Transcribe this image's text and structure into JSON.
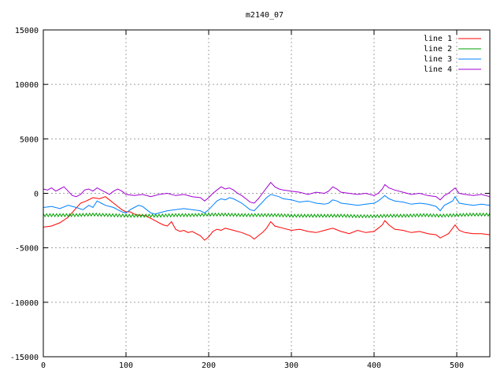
{
  "chart_data": {
    "type": "line",
    "title": "m2140_07",
    "xlabel": "",
    "ylabel": "",
    "xlim": [
      0,
      540
    ],
    "ylim": [
      -15000,
      15000
    ],
    "xticks": [
      0,
      100,
      200,
      300,
      400,
      500
    ],
    "yticks": [
      -15000,
      -10000,
      -5000,
      0,
      5000,
      10000,
      15000
    ],
    "grid": true,
    "legend_position": "top-right",
    "series": [
      {
        "name": "line 1",
        "color": "#ff0000",
        "points": [
          [
            0,
            -3100
          ],
          [
            10,
            -3000
          ],
          [
            20,
            -2700
          ],
          [
            30,
            -2200
          ],
          [
            38,
            -1500
          ],
          [
            45,
            -900
          ],
          [
            52,
            -700
          ],
          [
            60,
            -400
          ],
          [
            68,
            -500
          ],
          [
            75,
            -300
          ],
          [
            80,
            -600
          ],
          [
            85,
            -900
          ],
          [
            90,
            -1200
          ],
          [
            95,
            -1500
          ],
          [
            100,
            -1700
          ],
          [
            105,
            -1700
          ],
          [
            110,
            -1900
          ],
          [
            115,
            -2000
          ],
          [
            120,
            -2000
          ],
          [
            125,
            -2100
          ],
          [
            130,
            -2300
          ],
          [
            135,
            -2500
          ],
          [
            140,
            -2700
          ],
          [
            145,
            -2900
          ],
          [
            150,
            -3000
          ],
          [
            155,
            -2600
          ],
          [
            160,
            -3300
          ],
          [
            165,
            -3500
          ],
          [
            170,
            -3400
          ],
          [
            175,
            -3600
          ],
          [
            180,
            -3500
          ],
          [
            185,
            -3700
          ],
          [
            190,
            -3900
          ],
          [
            195,
            -4300
          ],
          [
            200,
            -4000
          ],
          [
            205,
            -3500
          ],
          [
            210,
            -3300
          ],
          [
            215,
            -3400
          ],
          [
            220,
            -3200
          ],
          [
            230,
            -3400
          ],
          [
            240,
            -3600
          ],
          [
            250,
            -3900
          ],
          [
            255,
            -4200
          ],
          [
            260,
            -3900
          ],
          [
            265,
            -3600
          ],
          [
            270,
            -3200
          ],
          [
            275,
            -2600
          ],
          [
            280,
            -3000
          ],
          [
            290,
            -3200
          ],
          [
            300,
            -3400
          ],
          [
            310,
            -3300
          ],
          [
            320,
            -3500
          ],
          [
            330,
            -3600
          ],
          [
            340,
            -3400
          ],
          [
            350,
            -3200
          ],
          [
            360,
            -3500
          ],
          [
            370,
            -3700
          ],
          [
            380,
            -3400
          ],
          [
            390,
            -3600
          ],
          [
            400,
            -3500
          ],
          [
            405,
            -3200
          ],
          [
            410,
            -2900
          ],
          [
            413,
            -2500
          ],
          [
            418,
            -2900
          ],
          [
            425,
            -3300
          ],
          [
            435,
            -3400
          ],
          [
            445,
            -3600
          ],
          [
            455,
            -3500
          ],
          [
            465,
            -3700
          ],
          [
            475,
            -3800
          ],
          [
            480,
            -4100
          ],
          [
            485,
            -3900
          ],
          [
            490,
            -3700
          ],
          [
            495,
            -3200
          ],
          [
            498,
            -2900
          ],
          [
            503,
            -3400
          ],
          [
            510,
            -3600
          ],
          [
            520,
            -3700
          ],
          [
            530,
            -3700
          ],
          [
            540,
            -3800
          ]
        ]
      },
      {
        "name": "line 2",
        "color": "#00a000",
        "points": [
          [
            0,
            -2000
          ],
          [
            20,
            -2000
          ],
          [
            40,
            -2000
          ],
          [
            60,
            -1950
          ],
          [
            80,
            -2000
          ],
          [
            100,
            -2050
          ],
          [
            120,
            -2050
          ],
          [
            140,
            -2050
          ],
          [
            160,
            -2000
          ],
          [
            180,
            -2000
          ],
          [
            200,
            -1950
          ],
          [
            220,
            -1950
          ],
          [
            240,
            -2000
          ],
          [
            260,
            -2000
          ],
          [
            280,
            -2000
          ],
          [
            300,
            -2050
          ],
          [
            320,
            -2050
          ],
          [
            340,
            -2050
          ],
          [
            360,
            -2050
          ],
          [
            380,
            -2100
          ],
          [
            400,
            -2100
          ],
          [
            420,
            -2050
          ],
          [
            440,
            -2050
          ],
          [
            460,
            -2000
          ],
          [
            480,
            -2050
          ],
          [
            500,
            -2000
          ],
          [
            520,
            -1950
          ],
          [
            540,
            -1950
          ]
        ]
      },
      {
        "name": "line 3",
        "color": "#0080ff",
        "points": [
          [
            0,
            -1300
          ],
          [
            10,
            -1200
          ],
          [
            20,
            -1400
          ],
          [
            30,
            -1100
          ],
          [
            40,
            -1300
          ],
          [
            48,
            -1500
          ],
          [
            55,
            -1100
          ],
          [
            60,
            -1300
          ],
          [
            65,
            -700
          ],
          [
            70,
            -900
          ],
          [
            75,
            -1100
          ],
          [
            80,
            -1200
          ],
          [
            85,
            -1300
          ],
          [
            90,
            -1500
          ],
          [
            95,
            -1700
          ],
          [
            100,
            -1800
          ],
          [
            105,
            -1500
          ],
          [
            110,
            -1300
          ],
          [
            115,
            -1100
          ],
          [
            120,
            -1200
          ],
          [
            125,
            -1500
          ],
          [
            130,
            -1800
          ],
          [
            135,
            -1900
          ],
          [
            140,
            -1800
          ],
          [
            150,
            -1600
          ],
          [
            160,
            -1500
          ],
          [
            170,
            -1400
          ],
          [
            180,
            -1500
          ],
          [
            190,
            -1600
          ],
          [
            195,
            -1800
          ],
          [
            200,
            -1500
          ],
          [
            205,
            -1100
          ],
          [
            210,
            -700
          ],
          [
            215,
            -500
          ],
          [
            220,
            -600
          ],
          [
            225,
            -400
          ],
          [
            230,
            -500
          ],
          [
            235,
            -700
          ],
          [
            240,
            -900
          ],
          [
            245,
            -1200
          ],
          [
            250,
            -1500
          ],
          [
            255,
            -1600
          ],
          [
            260,
            -1200
          ],
          [
            265,
            -800
          ],
          [
            270,
            -400
          ],
          [
            275,
            -100
          ],
          [
            280,
            -200
          ],
          [
            285,
            -300
          ],
          [
            290,
            -500
          ],
          [
            300,
            -600
          ],
          [
            310,
            -800
          ],
          [
            320,
            -700
          ],
          [
            330,
            -900
          ],
          [
            340,
            -1000
          ],
          [
            345,
            -900
          ],
          [
            350,
            -600
          ],
          [
            355,
            -700
          ],
          [
            360,
            -900
          ],
          [
            370,
            -1000
          ],
          [
            380,
            -1100
          ],
          [
            390,
            -1000
          ],
          [
            400,
            -900
          ],
          [
            405,
            -700
          ],
          [
            410,
            -400
          ],
          [
            413,
            -200
          ],
          [
            418,
            -500
          ],
          [
            425,
            -700
          ],
          [
            435,
            -800
          ],
          [
            445,
            -1000
          ],
          [
            455,
            -900
          ],
          [
            465,
            -1000
          ],
          [
            475,
            -1200
          ],
          [
            480,
            -1600
          ],
          [
            485,
            -1100
          ],
          [
            490,
            -900
          ],
          [
            495,
            -700
          ],
          [
            498,
            -300
          ],
          [
            503,
            -900
          ],
          [
            510,
            -1000
          ],
          [
            520,
            -1100
          ],
          [
            530,
            -1000
          ],
          [
            540,
            -1100
          ]
        ]
      },
      {
        "name": "line 4",
        "color": "#a000d0",
        "points": [
          [
            0,
            400
          ],
          [
            5,
            300
          ],
          [
            10,
            500
          ],
          [
            15,
            200
          ],
          [
            20,
            400
          ],
          [
            25,
            600
          ],
          [
            30,
            200
          ],
          [
            35,
            -200
          ],
          [
            40,
            -300
          ],
          [
            45,
            -100
          ],
          [
            50,
            300
          ],
          [
            55,
            400
          ],
          [
            60,
            200
          ],
          [
            65,
            500
          ],
          [
            70,
            300
          ],
          [
            75,
            100
          ],
          [
            80,
            -100
          ],
          [
            85,
            200
          ],
          [
            90,
            400
          ],
          [
            95,
            200
          ],
          [
            100,
            -100
          ],
          [
            110,
            -200
          ],
          [
            120,
            -100
          ],
          [
            130,
            -300
          ],
          [
            140,
            -100
          ],
          [
            150,
            0
          ],
          [
            160,
            -200
          ],
          [
            170,
            -100
          ],
          [
            180,
            -300
          ],
          [
            190,
            -400
          ],
          [
            195,
            -700
          ],
          [
            200,
            -400
          ],
          [
            205,
            0
          ],
          [
            210,
            300
          ],
          [
            215,
            600
          ],
          [
            220,
            400
          ],
          [
            225,
            500
          ],
          [
            230,
            300
          ],
          [
            235,
            0
          ],
          [
            240,
            -200
          ],
          [
            245,
            -500
          ],
          [
            250,
            -800
          ],
          [
            255,
            -900
          ],
          [
            260,
            -500
          ],
          [
            265,
            0
          ],
          [
            270,
            500
          ],
          [
            275,
            1000
          ],
          [
            280,
            600
          ],
          [
            285,
            400
          ],
          [
            290,
            300
          ],
          [
            300,
            200
          ],
          [
            310,
            100
          ],
          [
            320,
            -100
          ],
          [
            330,
            100
          ],
          [
            340,
            0
          ],
          [
            345,
            200
          ],
          [
            350,
            600
          ],
          [
            355,
            400
          ],
          [
            360,
            100
          ],
          [
            370,
            0
          ],
          [
            380,
            -100
          ],
          [
            390,
            0
          ],
          [
            400,
            -200
          ],
          [
            405,
            0
          ],
          [
            410,
            400
          ],
          [
            413,
            800
          ],
          [
            418,
            500
          ],
          [
            425,
            300
          ],
          [
            435,
            100
          ],
          [
            445,
            -100
          ],
          [
            455,
            0
          ],
          [
            465,
            -200
          ],
          [
            475,
            -300
          ],
          [
            480,
            -600
          ],
          [
            485,
            -200
          ],
          [
            490,
            0
          ],
          [
            495,
            300
          ],
          [
            498,
            500
          ],
          [
            503,
            0
          ],
          [
            510,
            -100
          ],
          [
            520,
            -200
          ],
          [
            530,
            -100
          ],
          [
            540,
            -300
          ]
        ]
      }
    ]
  }
}
